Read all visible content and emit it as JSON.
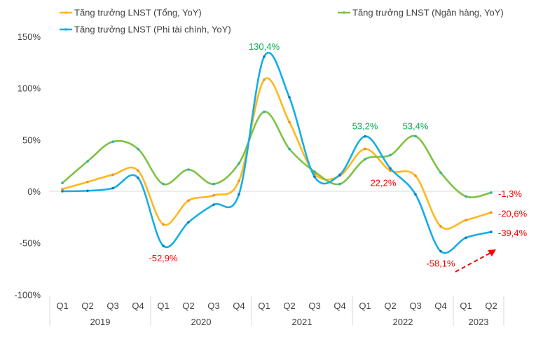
{
  "chart_data": {
    "type": "line",
    "smooth": true,
    "categories": [
      "Q1",
      "Q2",
      "Q3",
      "Q4",
      "Q1",
      "Q2",
      "Q3",
      "Q4",
      "Q1",
      "Q2",
      "Q3",
      "Q4",
      "Q1",
      "Q2",
      "Q3",
      "Q4",
      "Q1",
      "Q2"
    ],
    "years": [
      {
        "label": "2019",
        "count": 4
      },
      {
        "label": "2020",
        "count": 4
      },
      {
        "label": "2021",
        "count": 4
      },
      {
        "label": "2022",
        "count": 4
      },
      {
        "label": "2023",
        "count": 2
      }
    ],
    "ylim": [
      -100,
      150
    ],
    "yticks": [
      150,
      100,
      50,
      0,
      -50,
      -100
    ],
    "ytick_labels": [
      "150%",
      "100%",
      "50%",
      "0%",
      "-50%",
      "-100%"
    ],
    "grid": false,
    "legend_position": "top",
    "series": [
      {
        "name": "Tăng trưởng LNST (Tổng, YoY)",
        "color": "#FFB81C",
        "values": [
          2,
          9,
          16,
          20,
          -32,
          -9,
          -4,
          10,
          108,
          67,
          17,
          15,
          41,
          20,
          15,
          -34,
          -28,
          -20.6
        ]
      },
      {
        "name": "Tăng trưởng LNST (Ngân hàng, YoY)",
        "color": "#7DC242",
        "values": [
          8,
          29,
          48,
          41,
          7,
          21,
          7,
          27,
          77,
          41,
          19,
          7,
          31,
          35,
          53.4,
          18,
          -5,
          -1.3
        ]
      },
      {
        "name": "Tăng trưởng LNST (Phi tài chính, YoY)",
        "color": "#14AEE5",
        "values": [
          0,
          0.5,
          3,
          13,
          -52.9,
          -30,
          -13,
          -3,
          130.4,
          91,
          14,
          16,
          53.2,
          22.2,
          -3,
          -58.1,
          -45,
          -39.4
        ]
      }
    ],
    "annotations": [
      {
        "text": "130,4%",
        "color": "#00B050",
        "series": 2,
        "index": 8,
        "pos": "above"
      },
      {
        "text": "-52,9%",
        "color": "#FF0000",
        "series": 2,
        "index": 4,
        "pos": "below"
      },
      {
        "text": "53,2%",
        "color": "#00B050",
        "series": 2,
        "index": 12,
        "pos": "above"
      },
      {
        "text": "22,2%",
        "color": "#FF0000",
        "series": 2,
        "index": 13,
        "pos": "left"
      },
      {
        "text": "53,4%",
        "color": "#00B050",
        "series": 1,
        "index": 14,
        "pos": "above"
      },
      {
        "text": "-58,1%",
        "color": "#FF0000",
        "series": 2,
        "index": 15,
        "pos": "below"
      },
      {
        "text": "-1,3%",
        "color": "#FF0000",
        "series": 1,
        "index": 17,
        "pos": "right"
      },
      {
        "text": "-20,6%",
        "color": "#FF0000",
        "series": 0,
        "index": 17,
        "pos": "right"
      },
      {
        "text": "-39,4%",
        "color": "#FF0000",
        "series": 2,
        "index": 17,
        "pos": "right"
      }
    ],
    "trend_arrow_color": "#FF0000"
  }
}
